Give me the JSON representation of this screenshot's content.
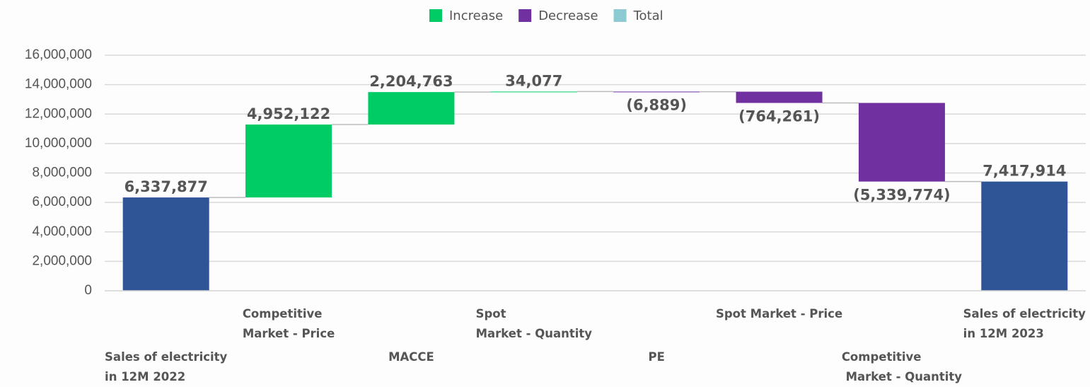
{
  "chart_data": {
    "type": "waterfall",
    "categories": [
      "Sales of electricity\nin 12M 2022",
      "Competitive\nMarket - Price",
      "MACCE",
      "Spot\nMarket - Quantity",
      "PE",
      "Spot Market - Price",
      "Competitive\n Market - Quantity",
      "Sales of electricity\nin 12M 2023"
    ],
    "values": [
      6337877,
      4952122,
      2204763,
      34077,
      -6889,
      -764261,
      -5339774,
      7417914
    ],
    "value_labels": [
      "6,337,877",
      "4,952,122",
      "2,204,763",
      "34,077",
      "(6,889)",
      "(764,261)",
      "(5,339,774)",
      "7,417,914"
    ],
    "is_total": [
      true,
      false,
      false,
      false,
      false,
      false,
      false,
      true
    ],
    "legend": [
      {
        "name": "Increase",
        "color": "#00cc66"
      },
      {
        "name": "Decrease",
        "color": "#7030a0"
      },
      {
        "name": "Total",
        "color": "#8ecad1"
      }
    ],
    "total_bar_color": "#2f5597",
    "ylim": [
      0,
      16000000
    ],
    "yticks": [
      {
        "value": 0,
        "label": "0"
      },
      {
        "value": 2000000,
        "label": "2,000,000"
      },
      {
        "value": 4000000,
        "label": "4,000,000"
      },
      {
        "value": 6000000,
        "label": "6,000,000"
      },
      {
        "value": 8000000,
        "label": "8,000,000"
      },
      {
        "value": 10000000,
        "label": "10,000,000"
      },
      {
        "value": 12000000,
        "label": "12,000,000"
      },
      {
        "value": 14000000,
        "label": "14,000,000"
      },
      {
        "value": 16000000,
        "label": "16,000,000"
      }
    ],
    "grid": true
  }
}
